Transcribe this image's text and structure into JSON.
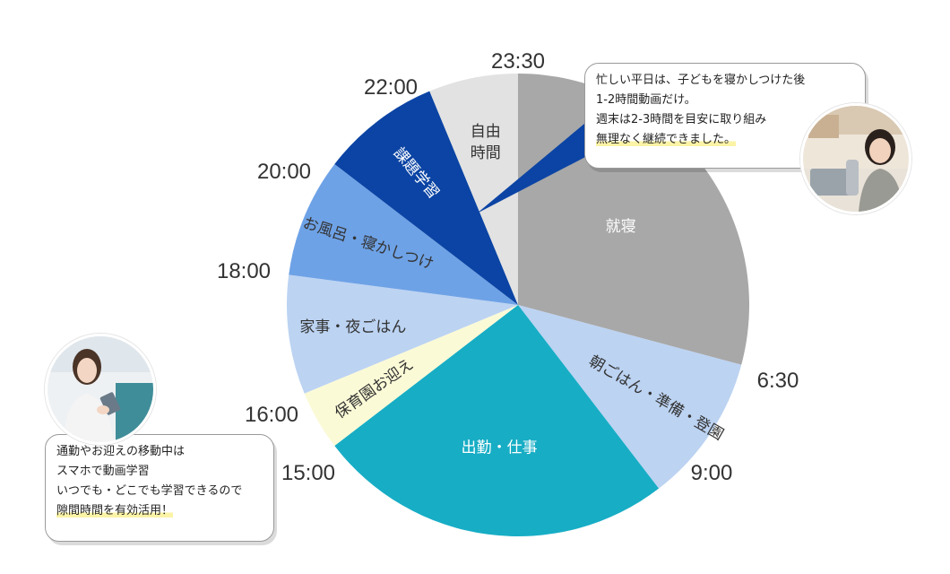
{
  "chart_data": {
    "type": "pie",
    "title": "",
    "unit": "hours",
    "slices": [
      {
        "label": "就寝",
        "start": "23:30",
        "end": "6:30",
        "hours": 7.0,
        "color": "#a8a8a8",
        "text_color": "#ffffff"
      },
      {
        "label": "朝ごはん・準備・登園",
        "start": "6:30",
        "end": "9:00",
        "hours": 2.5,
        "color": "#bcd3f2",
        "text_color": "#333333"
      },
      {
        "label": "出勤・仕事",
        "start": "9:00",
        "end": "15:00",
        "hours": 6.0,
        "color": "#17adc5",
        "text_color": "#ffffff"
      },
      {
        "label": "保育園お迎え",
        "start": "15:00",
        "end": "16:00",
        "hours": 1.0,
        "color": "#fbfad7",
        "text_color": "#333333"
      },
      {
        "label": "家事・夜ごはん",
        "start": "16:00",
        "end": "18:00",
        "hours": 2.0,
        "color": "#bcd3f2",
        "text_color": "#333333"
      },
      {
        "label": "お風呂・寝かしつけ",
        "start": "18:00",
        "end": "20:00",
        "hours": 2.0,
        "color": "#6ea2e6",
        "text_color": "#333333"
      },
      {
        "label": "課題学習",
        "start": "20:00",
        "end": "22:00",
        "hours": 2.0,
        "color": "#0b44a4",
        "text_color": "#ffffff"
      },
      {
        "label": "自由\n時間",
        "start": "22:00",
        "end": "23:30",
        "hours": 1.5,
        "color": "#e2e2e2",
        "text_color": "#333333"
      }
    ],
    "time_labels": [
      "23:30",
      "6:30",
      "9:00",
      "15:00",
      "16:00",
      "18:00",
      "20:00",
      "22:00"
    ],
    "legend": "none"
  },
  "bubbles": {
    "top_right": {
      "lines": [
        "忙しい平日は、子どもを寝かしつけた後",
        "1-2時間動画だけ。",
        "週末は2-3時間を目安に取り組み",
        "無理なく継続できました。"
      ]
    },
    "bottom_left": {
      "lines": [
        "通勤やお迎えの移動中は",
        "スマホで動画学習",
        "いつでも・どこでも学習できるので",
        "隙間時間を有効活用！"
      ]
    }
  },
  "colors": {
    "pointer": "#0b44a4",
    "highlight": "#fbf3a6"
  }
}
